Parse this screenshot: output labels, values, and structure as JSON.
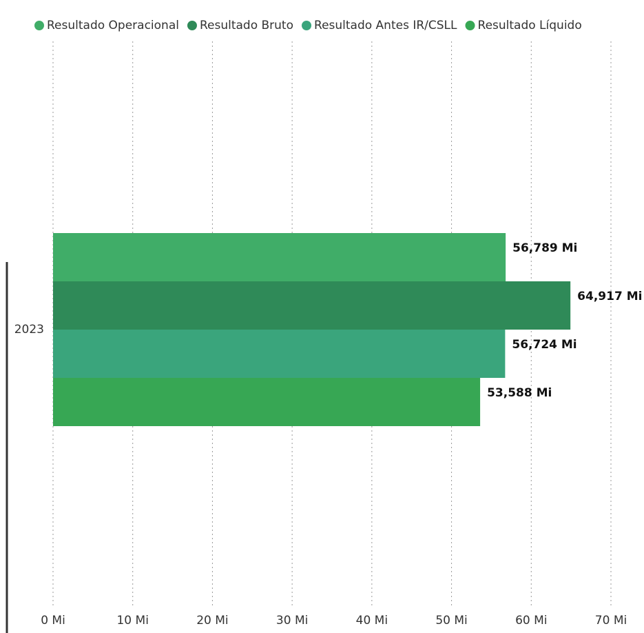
{
  "chart_data": {
    "type": "hbar",
    "categories": [
      "2023"
    ],
    "series": [
      {
        "name": "Resultado Operacional",
        "color": "#40ad68",
        "values": [
          56.789
        ],
        "value_labels": [
          "56,789 Mi"
        ]
      },
      {
        "name": "Resultado Bruto",
        "color": "#2f8a58",
        "values": [
          64.917
        ],
        "value_labels": [
          "64,917 Mi"
        ]
      },
      {
        "name": "Resultado Antes IR/CSLL",
        "color": "#3aa57c",
        "values": [
          56.724
        ],
        "value_labels": [
          "56,724 Mi"
        ]
      },
      {
        "name": "Resultado Líquido",
        "color": "#37a754",
        "values": [
          53.588
        ],
        "value_labels": [
          "53,588 Mi"
        ]
      }
    ],
    "xlim": [
      0,
      70
    ],
    "xticks": [
      {
        "value": 0,
        "label": "0 Mi"
      },
      {
        "value": 10,
        "label": "10 Mi"
      },
      {
        "value": 20,
        "label": "20 Mi"
      },
      {
        "value": 30,
        "label": "30 Mi"
      },
      {
        "value": 40,
        "label": "40 Mi"
      },
      {
        "value": 50,
        "label": "50 Mi"
      },
      {
        "value": 60,
        "label": "60 Mi"
      },
      {
        "value": 70,
        "label": "70 Mi"
      }
    ],
    "grid": true
  }
}
